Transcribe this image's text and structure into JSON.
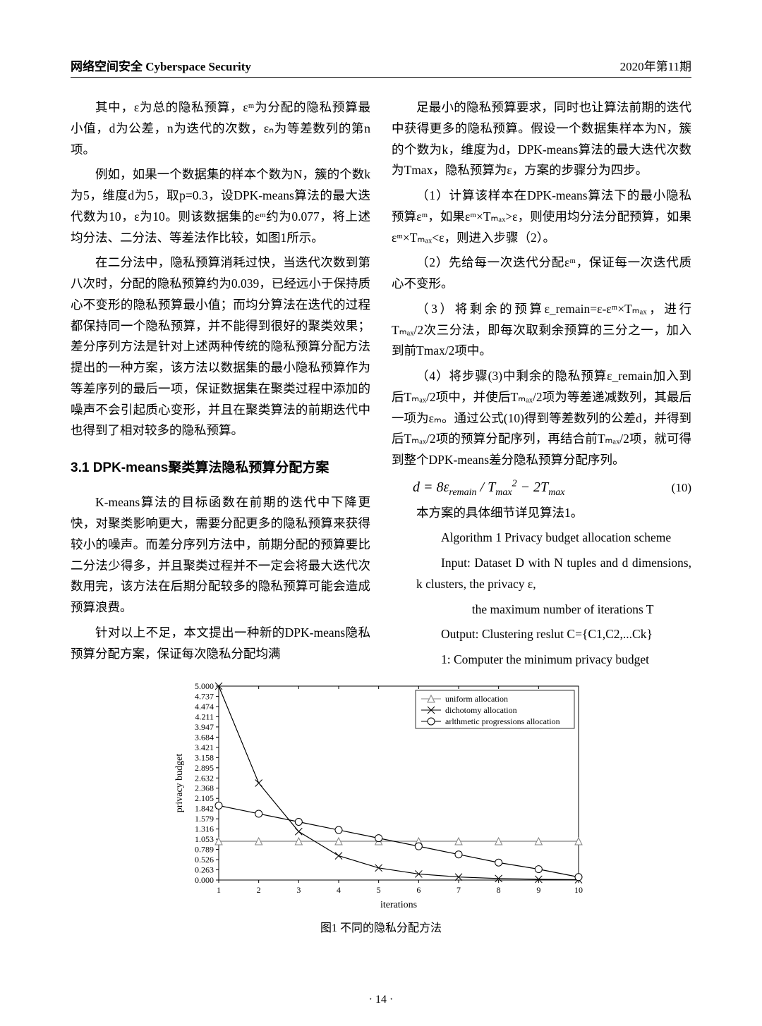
{
  "header": {
    "left": "网络空间安全 Cyberspace Security",
    "right": "2020年第11期"
  },
  "col_left": {
    "p1": "其中，ε为总的隐私预算，εᵐ为分配的隐私预算最小值，d为公差，n为迭代的次数，εₙ为等差数列的第n项。",
    "p2": "例如，如果一个数据集的样本个数为N，簇的个数k为5，维度d为5，取p=0.3，设DPK-means算法的最大迭代数为10，ε为10。则该数据集的εᵐ约为0.077，将上述均分法、二分法、等差法作比较，如图1所示。",
    "p3": "在二分法中，隐私预算消耗过快，当迭代次数到第八次时，分配的隐私预算约为0.039，已经远小于保持质心不变形的隐私预算最小值；而均分算法在迭代的过程都保持同一个隐私预算，并不能得到很好的聚类效果；差分序列方法是针对上述两种传统的隐私预算分配方法提出的一种方案，该方法以数据集的最小隐私预算作为等差序列的最后一项，保证数据集在聚类过程中添加的噪声不会引起质心变形，并且在聚类算法的前期迭代中也得到了相对较多的隐私预算。",
    "sec": "3.1 DPK-means聚类算法隐私预算分配方案",
    "p4": "K-means算法的目标函数在前期的迭代中下降更快，对聚类影响更大，需要分配更多的隐私预算来获得较小的噪声。而差分序列方法中，前期分配的预算要比二分法少得多，并且聚类过程并不一定会将最大迭代次数用完，该方法在后期分配较多的隐私预算可能会造成预算浪费。",
    "p5": "针对以上不足，本文提出一种新的DPK-means隐私预算分配方案，保证每次隐私分配均满"
  },
  "col_right": {
    "p1": "足最小的隐私预算要求，同时也让算法前期的迭代中获得更多的隐私预算。假设一个数据集样本为N，簇的个数为k，维度为d，DPK-means算法的最大迭代次数为Tmax，隐私预算为ε，方案的步骤分为四步。",
    "p2": "（1）计算该样本在DPK-means算法下的最小隐私预算εᵐ，如果εᵐ×Tₘₐₓ>ε，则使用均分法分配预算，如果εᵐ×Tₘₐₓ<ε，则进入步骤（2）。",
    "p3": "（2）先给每一次迭代分配εᵐ，保证每一次迭代质心不变形。",
    "p4": "（3）将剩余的预算ε_remain=ε-εᵐ×Tₘₐₓ，进行Tₘₐₓ/2次三分法，即每次取剩余预算的三分之一，加入到前Tmax/2项中。",
    "p5": "（4）将步骤(3)中剩余的隐私预算ε_remain加入到后Tₘₐₓ/2项中，并使后Tₘₐₓ/2项为等差递减数列，其最后一项为εₘ。通过公式(10)得到等差数列的公差d，并得到后Tₘₐₓ/2项的预算分配序列，再结合前Tₘₐₓ/2项，就可得到整个DPK-means差分隐私预算分配序列。",
    "eq": "d = 8ε_remain / T_max² − 2T_max",
    "eq_num": "(10)",
    "p6": "本方案的具体细节详见算法1。",
    "algo1": "Algorithm 1 Privacy budget allocation scheme",
    "algo2": "Input: Dataset D with N tuples and d dimensions, k clusters, the privacy ε,",
    "algo3": "the maximum number of iterations T",
    "algo4": "Output: Clustering reslut C={C1,C2,...Ck}",
    "algo5": "1: Computer the minimum privacy budget"
  },
  "figure": {
    "caption": "图1 不同的隐私分配方法",
    "xlabel": "iterations",
    "ylabel": "privacy budget",
    "x_ticks": [
      1,
      2,
      3,
      4,
      5,
      6,
      7,
      8,
      9,
      10
    ],
    "y_ticks": [
      "0.000",
      "0.263",
      "0.526",
      "0.789",
      "1.053",
      "1.316",
      "1.579",
      "1.842",
      "2.105",
      "2.368",
      "2.632",
      "2.895",
      "3.158",
      "3.421",
      "3.684",
      "3.947",
      "4.211",
      "4.474",
      "4.737",
      "5.000"
    ],
    "ylim": [
      0,
      5
    ],
    "legend": {
      "uniform": "uniform allocation",
      "dichotomy": "dichotomy allocation",
      "arith": "arlthmetic progressions allocation"
    },
    "colors": {
      "uniform": "#808080",
      "dichotomy": "#000000",
      "arith": "#000000",
      "grid": "#000000",
      "bg": "#ffffff"
    },
    "series": {
      "uniform": [
        1.0,
        1.0,
        1.0,
        1.0,
        1.0,
        1.0,
        1.0,
        1.0,
        1.0,
        1.0
      ],
      "dichotomy": [
        5.0,
        2.5,
        1.25,
        0.625,
        0.3125,
        0.156,
        0.078,
        0.039,
        0.0195,
        0.00977
      ],
      "arith": [
        1.92,
        1.71,
        1.5,
        1.29,
        1.08,
        0.87,
        0.66,
        0.45,
        0.28,
        0.077
      ]
    },
    "markers": {
      "uniform": "triangle",
      "dichotomy": "x",
      "arith": "circle"
    },
    "line_width": 1.2,
    "marker_size": 5,
    "font_size_axis": 12,
    "font_size_legend": 12
  },
  "pagenum": "· 14 ·"
}
